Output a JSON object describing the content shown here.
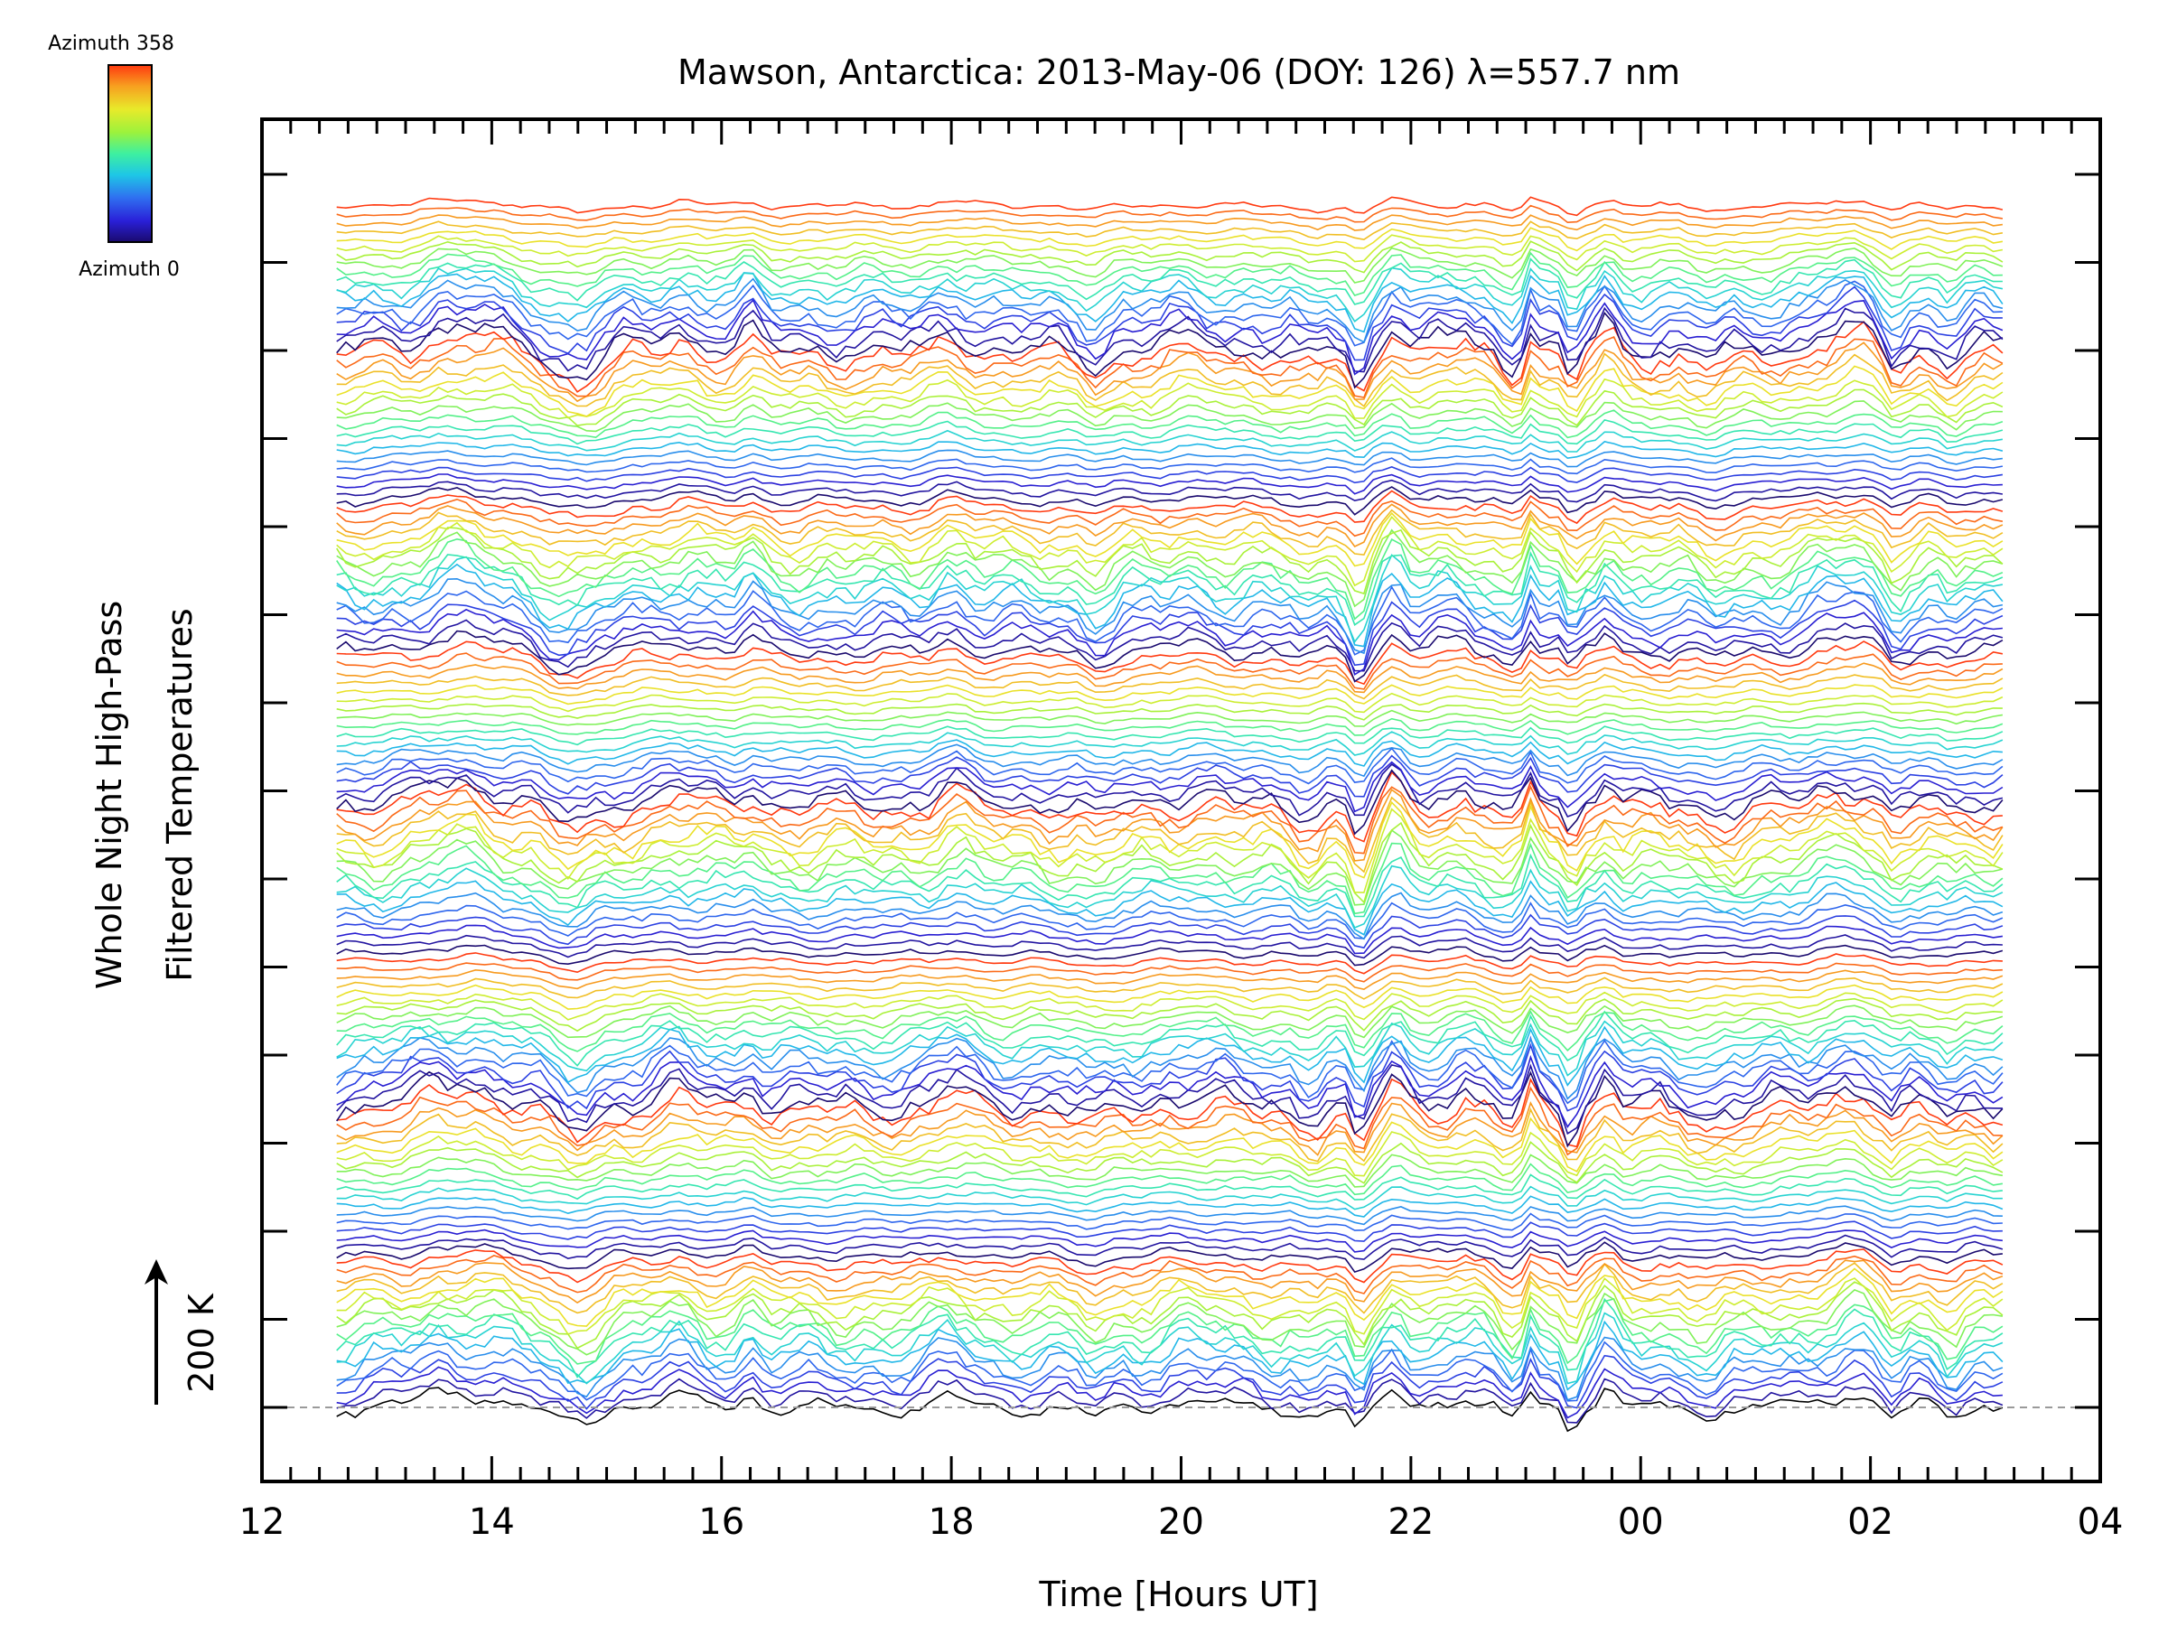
{
  "chart_data": {
    "type": "line",
    "title": "Mawson, Antarctica: 2013-May-06 (DOY: 126) λ=557.7 nm",
    "xlabel": "Time [Hours UT]",
    "ylabel_line1": "Whole Night High-Pass",
    "ylabel_line2": "Filtered Temperatures",
    "scale_label": "200 K",
    "x_ticks": [
      "12",
      "14",
      "16",
      "18",
      "20",
      "22",
      "00",
      "02",
      "04"
    ],
    "xlim_hours": [
      12,
      28
    ],
    "x_range_hours": [
      12.65,
      27.15
    ],
    "colorbar": {
      "top_label": "Azimuth 358",
      "bottom_label": "Azimuth 0",
      "min": 0,
      "max": 358,
      "colors": [
        "#1a0a6e",
        "#2a20d8",
        "#2f6ff0",
        "#1ec7e6",
        "#3ef0a0",
        "#9cf23c",
        "#e8ea2a",
        "#f7a020",
        "#ff3a10"
      ]
    },
    "series_count": 144,
    "series_groups": 8,
    "trace_offset_K": 25,
    "features": [
      {
        "time_hours": 13.7,
        "amplitude": 0.6,
        "width": 0.45
      },
      {
        "time_hours": 14.7,
        "amplitude": -0.7,
        "width": 0.25
      },
      {
        "time_hours": 15.6,
        "amplitude": 0.35,
        "width": 0.3
      },
      {
        "time_hours": 16.25,
        "amplitude": 0.45,
        "width": 0.12
      },
      {
        "time_hours": 18.0,
        "amplitude": 0.5,
        "width": 0.2
      },
      {
        "time_hours": 19.25,
        "amplitude": -0.35,
        "width": 0.15
      },
      {
        "time_hours": 20.1,
        "amplitude": 0.25,
        "width": 0.3
      },
      {
        "time_hours": 21.1,
        "amplitude": -0.45,
        "width": 0.12
      },
      {
        "time_hours": 21.55,
        "amplitude": -1.1,
        "width": 0.1
      },
      {
        "time_hours": 21.85,
        "amplitude": 0.8,
        "width": 0.12
      },
      {
        "time_hours": 22.4,
        "amplitude": 0.35,
        "width": 0.2
      },
      {
        "time_hours": 22.85,
        "amplitude": -0.45,
        "width": 0.12
      },
      {
        "time_hours": 23.05,
        "amplitude": 0.8,
        "width": 0.06
      },
      {
        "time_hours": 23.4,
        "amplitude": -0.8,
        "width": 0.08
      },
      {
        "time_hours": 23.7,
        "amplitude": 0.7,
        "width": 0.1
      },
      {
        "time_hours": 24.6,
        "amplitude": -0.3,
        "width": 0.25
      },
      {
        "time_hours": 25.8,
        "amplitude": 0.6,
        "width": 0.3
      },
      {
        "time_hours": 26.2,
        "amplitude": -0.55,
        "width": 0.12
      },
      {
        "time_hours": 26.7,
        "amplitude": -0.35,
        "width": 0.1
      }
    ],
    "grid": false,
    "legend": "colorbar top-left"
  }
}
